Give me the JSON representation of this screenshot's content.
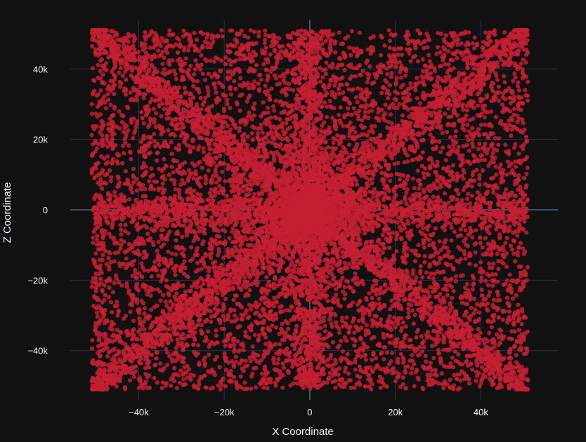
{
  "chart_data": {
    "type": "scatter",
    "title": "",
    "xlabel": "X Coordinate",
    "ylabel": "Z Coordinate",
    "xlim": [
      -56000,
      58000
    ],
    "ylim": [
      -54000,
      54000
    ],
    "x_ticks": [
      -40000,
      -20000,
      0,
      20000,
      40000
    ],
    "x_tick_labels": [
      "−40k",
      "−20k",
      "0",
      "20k",
      "40k"
    ],
    "y_ticks": [
      -40000,
      -20000,
      0,
      20000,
      40000
    ],
    "y_tick_labels": [
      "−40k",
      "−20k",
      "0",
      "20k",
      "40k"
    ],
    "grid": true,
    "colors": {
      "background": "#111111",
      "marker": "#c41e33",
      "grid": "#283442",
      "zero_line": "#506784",
      "text": "#f2f5fa"
    },
    "series": [
      {
        "marker_color": "#c41e33",
        "distribution": {
          "x_range": [
            -51000,
            51000
          ],
          "z_range": [
            -51000,
            51000
          ],
          "pattern": "dense uniform field with concentration along the diagonals and the central axes"
        }
      }
    ]
  }
}
